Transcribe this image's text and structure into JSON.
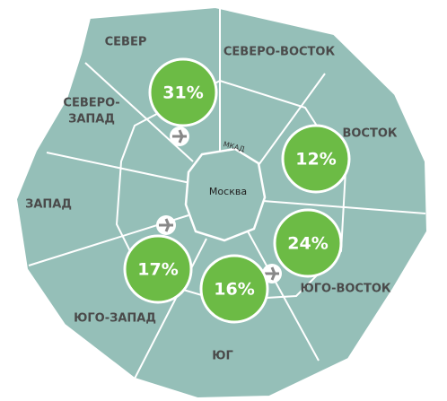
{
  "regions": [
    {
      "lines": [
        "СЕВЕР"
      ]
    },
    {
      "lines": [
        "СЕВЕРО-ВОСТОК"
      ]
    },
    {
      "lines": [
        "СЕВЕРО-",
        "ЗАПАД"
      ]
    },
    {
      "lines": [
        "ВОСТОК"
      ]
    },
    {
      "lines": [
        "ЗАПАД"
      ]
    },
    {
      "lines": [
        "ЮГО-ЗАПАД"
      ]
    },
    {
      "lines": [
        "ЮГО-ВОСТОК"
      ]
    },
    {
      "lines": [
        "ЮГ"
      ]
    }
  ],
  "center_label": "Москва",
  "ring_label": "МКАД",
  "bubbles": [
    {
      "value": 31,
      "label": "31%"
    },
    {
      "value": 12,
      "label": "12%"
    },
    {
      "value": 24,
      "label": "24%"
    },
    {
      "value": 17,
      "label": "17%"
    },
    {
      "value": 16,
      "label": "16%"
    }
  ]
}
